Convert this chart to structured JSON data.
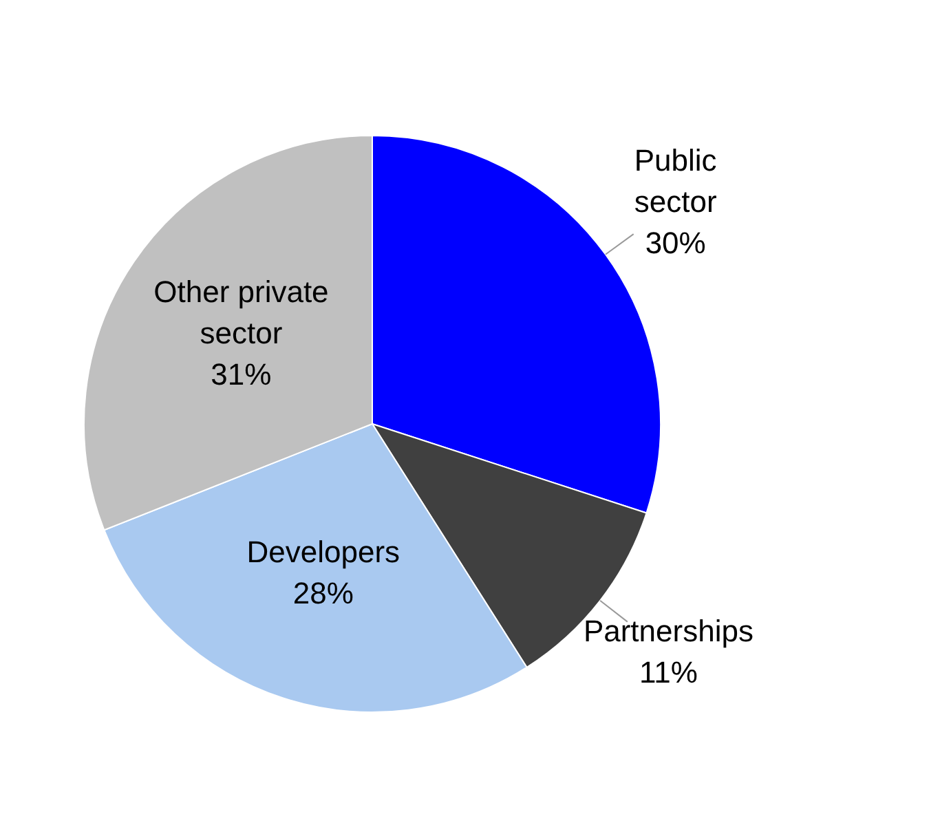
{
  "chart_data": {
    "type": "pie",
    "categories": [
      "Public sector",
      "Partnerships",
      "Developers",
      "Other private sector"
    ],
    "values": [
      30,
      11,
      28,
      31
    ],
    "colors": [
      "#0000ff",
      "#404040",
      "#a9c9f0",
      "#c0c0c0"
    ],
    "value_labels": [
      "30%",
      "11%",
      "28%",
      "31%"
    ],
    "legend": false
  }
}
